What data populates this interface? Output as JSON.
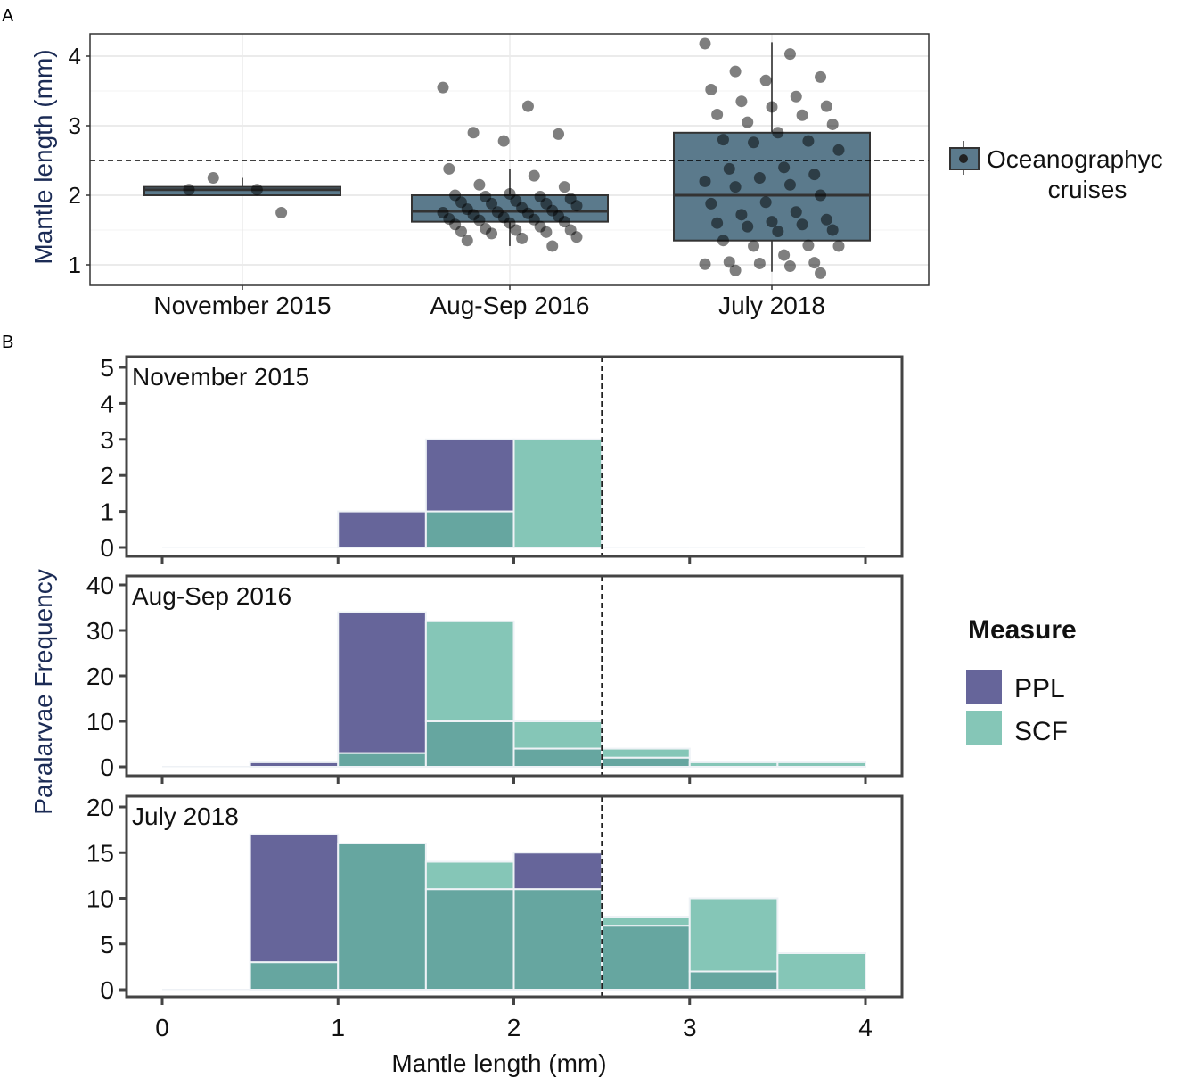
{
  "chart_data": [
    {
      "panel_label": "A",
      "type": "boxplot",
      "ylabel": "Mantle length (mm)",
      "yticks": [
        1,
        2,
        3,
        4
      ],
      "ylim": [
        0.7,
        4.32
      ],
      "reference_line": 2.5,
      "legend": {
        "label": "Oceanographyc cruises",
        "label_lines": [
          "Oceanographyc",
          "cruises"
        ],
        "placement": "right"
      },
      "categories": [
        "November 2015",
        "Aug-Sep 2016",
        "July 2018"
      ],
      "boxes": [
        {
          "min": 2.0,
          "q1": 2.0,
          "median": 2.08,
          "q3": 2.12,
          "max": 2.25
        },
        {
          "min": 1.27,
          "q1": 1.62,
          "median": 1.77,
          "q3": 2.0,
          "max": 2.38
        },
        {
          "min": 0.9,
          "q1": 1.35,
          "median": 2.0,
          "q3": 2.9,
          "max": 4.2
        }
      ],
      "points": [
        [
          2.08,
          2.08,
          2.25,
          1.75
        ],
        [
          3.55,
          3.28,
          2.9,
          2.88,
          2.78,
          2.38,
          2.28,
          2.15,
          2.12,
          2.02,
          2.0,
          1.98,
          1.98,
          1.95,
          1.92,
          1.9,
          1.88,
          1.88,
          1.85,
          1.82,
          1.8,
          1.78,
          1.76,
          1.75,
          1.74,
          1.72,
          1.7,
          1.68,
          1.66,
          1.65,
          1.64,
          1.62,
          1.6,
          1.58,
          1.55,
          1.52,
          1.5,
          1.5,
          1.48,
          1.47,
          1.45,
          1.4,
          1.38,
          1.35,
          1.27
        ],
        [
          4.18,
          4.03,
          3.78,
          3.7,
          3.65,
          3.52,
          3.42,
          3.35,
          3.28,
          3.27,
          3.16,
          3.15,
          3.05,
          3.02,
          2.9,
          2.8,
          2.78,
          2.76,
          2.65,
          2.4,
          2.38,
          2.3,
          2.25,
          2.2,
          2.15,
          2.12,
          2.0,
          1.9,
          1.88,
          1.76,
          1.72,
          1.65,
          1.62,
          1.6,
          1.58,
          1.55,
          1.5,
          1.48,
          1.35,
          1.28,
          1.27,
          1.27,
          1.14,
          1.04,
          1.03,
          1.02,
          1.01,
          0.98,
          0.92,
          0.88
        ]
      ]
    },
    {
      "panel_label": "B",
      "type": "histogram",
      "xlabel": "Mantle length (mm)",
      "ylabel": "Paralarvae Frequency",
      "xticks": [
        0,
        1,
        2,
        3,
        4
      ],
      "xlim": [
        0,
        4
      ],
      "bin_edges": [
        0,
        0.5,
        1,
        1.5,
        2,
        2.5,
        3,
        3.5,
        4
      ],
      "reference_line": 2.5,
      "legend": {
        "title": "Measure",
        "entries": [
          "PPL",
          "SCF"
        ],
        "placement": "right"
      },
      "colors": {
        "PPL": "#66659a",
        "SCF": "#85c6b7",
        "overlap": "#66a6a0"
      },
      "facets": [
        {
          "title": "November 2015",
          "ylim": [
            0,
            5
          ],
          "yticks": [
            0,
            1,
            2,
            3,
            4,
            5
          ],
          "series": [
            {
              "name": "PPL",
              "values": [
                0,
                0,
                1,
                3,
                0,
                0,
                0,
                0
              ]
            },
            {
              "name": "SCF",
              "values": [
                0,
                0,
                0,
                1,
                3,
                0,
                0,
                0
              ]
            }
          ]
        },
        {
          "title": "Aug-Sep 2016",
          "ylim": [
            0,
            40
          ],
          "yticks": [
            0,
            10,
            20,
            30,
            40
          ],
          "series": [
            {
              "name": "PPL",
              "values": [
                0,
                1,
                34,
                10,
                4,
                2,
                0,
                0
              ]
            },
            {
              "name": "SCF",
              "values": [
                0,
                0,
                3,
                32,
                10,
                4,
                1,
                1
              ]
            }
          ]
        },
        {
          "title": "July 2018",
          "ylim": [
            0,
            20
          ],
          "yticks": [
            0,
            5,
            10,
            15,
            20
          ],
          "series": [
            {
              "name": "PPL",
              "values": [
                0,
                17,
                16,
                11,
                15,
                7,
                2,
                0
              ]
            },
            {
              "name": "SCF",
              "values": [
                0,
                3,
                16,
                14,
                11,
                8,
                10,
                4
              ]
            }
          ]
        }
      ]
    }
  ]
}
